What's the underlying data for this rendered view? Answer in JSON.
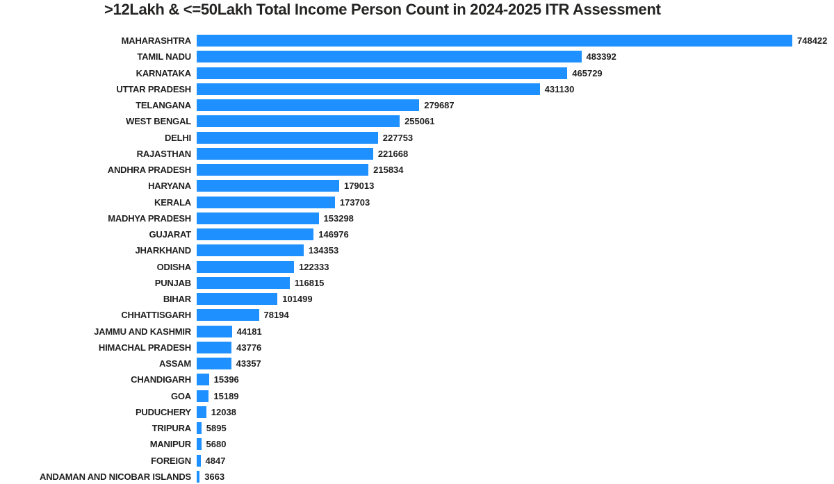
{
  "title": ">12Lakh & <=50Lakh Total Income Person Count in 2024-2025 ITR Assessment",
  "colors": {
    "bar": "#1E90FF",
    "text": "#1f1f1f",
    "title": "#252423",
    "background": "#ffffff"
  },
  "chart_data": {
    "type": "bar",
    "orientation": "horizontal",
    "title": ">12Lakh & <=50Lakh Total Income Person Count in 2024-2025 ITR Assessment",
    "xlabel": "",
    "ylabel": "",
    "xlim": [
      0,
      748422
    ],
    "grid": false,
    "legend": false,
    "value_labels": true,
    "categories": [
      "MAHARASHTRA",
      "TAMIL NADU",
      "KARNATAKA",
      "UTTAR PRADESH",
      "TELANGANA",
      "WEST BENGAL",
      "DELHI",
      "RAJASTHAN",
      "ANDHRA PRADESH",
      "HARYANA",
      "KERALA",
      "MADHYA PRADESH",
      "GUJARAT",
      "JHARKHAND",
      "ODISHA",
      "PUNJAB",
      "BIHAR",
      "CHHATTISGARH",
      "JAMMU AND KASHMIR",
      "HIMACHAL PRADESH",
      "ASSAM",
      "CHANDIGARH",
      "GOA",
      "PUDUCHERY",
      "TRIPURA",
      "MANIPUR",
      "FOREIGN",
      "ANDAMAN AND NICOBAR ISLANDS"
    ],
    "values": [
      748422,
      483392,
      465729,
      431130,
      279687,
      255061,
      227753,
      221668,
      215834,
      179013,
      173703,
      153298,
      146976,
      134353,
      122333,
      116815,
      101499,
      78194,
      44181,
      43776,
      43357,
      15396,
      15189,
      12038,
      5895,
      5680,
      4847,
      3663
    ]
  }
}
